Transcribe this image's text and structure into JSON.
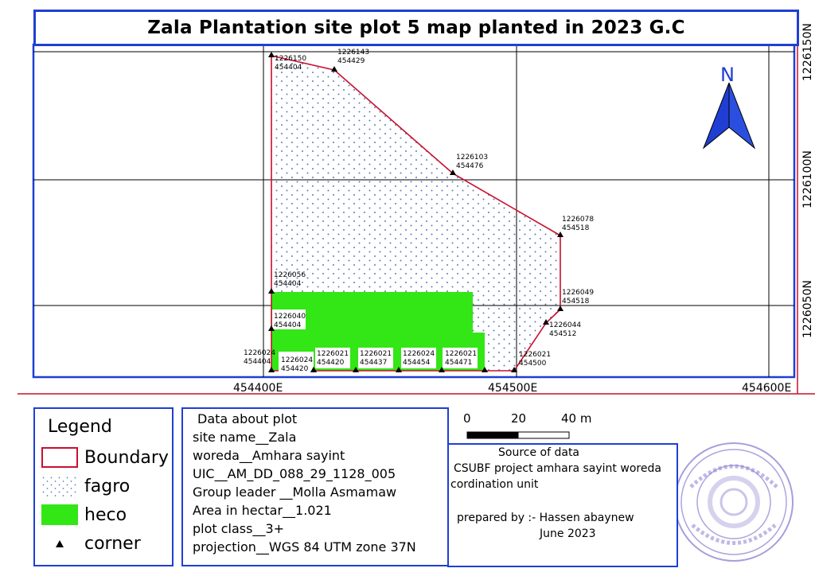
{
  "title": "Zala Plantation site plot 5 map planted in 2023 G.C",
  "grid_labels": {
    "x": [
      "454400E",
      "454500E",
      "454600E"
    ],
    "y": [
      "1226150N",
      "1226100N",
      "1226050N"
    ]
  },
  "north_label": "N",
  "corner_points": [
    {
      "n": "1226150",
      "e": "454404"
    },
    {
      "n": "1226143",
      "e": "454429"
    },
    {
      "n": "1226103",
      "e": "454476"
    },
    {
      "n": "1226078",
      "e": "454518"
    },
    {
      "n": "1226049",
      "e": "454518"
    },
    {
      "n": "1226044",
      "e": "454512"
    },
    {
      "n": "1226021",
      "e": "454500"
    },
    {
      "n": "1226056",
      "e": "454404"
    },
    {
      "n": "1226040",
      "e": "454404"
    },
    {
      "n": "1226024",
      "e": "454404"
    },
    {
      "n": "1226024",
      "e": "454420"
    },
    {
      "n": "1226021",
      "e": "454420"
    },
    {
      "n": "1226021",
      "e": "454437"
    },
    {
      "n": "1226024",
      "e": "454454"
    },
    {
      "n": "1226021",
      "e": "454471"
    }
  ],
  "legend": {
    "title": "Legend",
    "items": [
      {
        "label": "Boundary",
        "type": "boundary"
      },
      {
        "label": "fagro",
        "type": "fagro"
      },
      {
        "label": "heco",
        "type": "heco"
      },
      {
        "label": "corner",
        "type": "corner"
      }
    ],
    "colors": {
      "boundary": "#c8102e",
      "fagro_dots": "#5a7fb8",
      "heco": "#33e615"
    }
  },
  "plot_info": {
    "heading": "Data about plot",
    "lines": [
      "site name__Zala",
      "woreda__Amhara sayint",
      "UIC__AM_DD_088_29_1128_005",
      "Group leader __Molla Asmamaw",
      "Area in hectar__1.021",
      "plot class__3+",
      "projection__WGS 84 UTM zone 37N"
    ]
  },
  "scale_bar": {
    "labels": [
      "0",
      "20",
      "40 m"
    ]
  },
  "source": {
    "heading": "Source of data",
    "line1": "CSUBF project amhara sayint woreda",
    "line2": "cordination unit",
    "prepared_by": "prepared by :- Hassen abaynew",
    "date": "June 2023"
  },
  "accent_color": "#1f3fd4",
  "stamp_color": "#8a7fcf"
}
